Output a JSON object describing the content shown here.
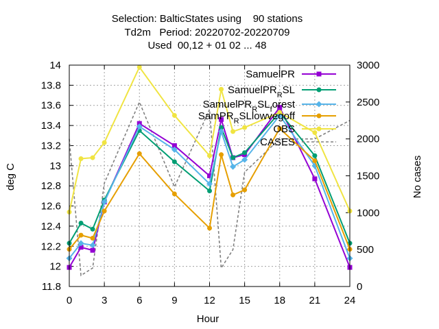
{
  "chart_data": {
    "type": "line",
    "title_lines": [
      "Selection: BalticStates using    90 stations",
      "Td2m   Period: 20220702-20220709",
      "Used  00,12 + 01 02 ... 48"
    ],
    "xlabel": "Hour",
    "ylabel": "deg C",
    "y2label": "No cases",
    "xlim": [
      0,
      24
    ],
    "ylim": [
      11.8,
      14
    ],
    "y2lim": [
      0,
      3000
    ],
    "x_ticks": [
      0,
      3,
      6,
      9,
      12,
      15,
      18,
      21,
      24
    ],
    "y_ticks": [
      "11.8",
      "12",
      "12.2",
      "12.4",
      "12.6",
      "12.8",
      "13",
      "13.2",
      "13.4",
      "13.6",
      "13.8",
      "14"
    ],
    "y2_ticks": [
      "0",
      "500",
      "1000",
      "1500",
      "2000",
      "2500",
      "3000"
    ],
    "grid": true,
    "legend_position": "top-right",
    "series": [
      {
        "name": "SamuelPR",
        "color": "#9400d3",
        "marker": "square",
        "x": [
          0,
          1,
          2,
          3,
          6,
          9,
          12,
          13,
          14,
          15,
          18,
          21,
          24
        ],
        "values": [
          11.99,
          12.19,
          12.16,
          12.64,
          13.42,
          13.2,
          12.9,
          13.46,
          13.08,
          13.11,
          13.58,
          12.87,
          11.99
        ]
      },
      {
        "name_parts": [
          [
            "SamuelPR",
            false
          ],
          [
            "R",
            true
          ],
          [
            "SL",
            false
          ]
        ],
        "color": "#009e73",
        "marker": "circle",
        "x": [
          0,
          1,
          2,
          3,
          6,
          9,
          12,
          13,
          14,
          15,
          18,
          21,
          24
        ],
        "values": [
          12.23,
          12.43,
          12.37,
          12.66,
          13.35,
          13.04,
          12.75,
          13.38,
          13.08,
          13.13,
          13.53,
          13.1,
          12.23
        ]
      },
      {
        "name_parts": [
          [
            "SamuelPR",
            false
          ],
          [
            "R",
            true
          ],
          [
            "SL",
            false
          ],
          [
            "f",
            true
          ],
          [
            "orest",
            false
          ]
        ],
        "color": "#56b4e9",
        "marker": "diamond",
        "x": [
          0,
          1,
          2,
          3,
          6,
          9,
          12,
          13,
          14,
          15,
          18,
          21,
          24
        ],
        "values": [
          12.08,
          12.23,
          12.21,
          12.64,
          13.39,
          13.16,
          12.82,
          13.34,
          12.99,
          13.06,
          13.5,
          13.0,
          12.08
        ]
      },
      {
        "name_parts": [
          [
            "SamPR",
            false
          ],
          [
            "R",
            true
          ],
          [
            "SLlowvegoff",
            false
          ]
        ],
        "color": "#e69f00",
        "marker": "circle",
        "x": [
          0,
          1,
          2,
          3,
          6,
          9,
          12,
          13,
          14,
          15,
          18,
          21,
          24
        ],
        "values": [
          12.17,
          12.31,
          12.28,
          12.55,
          13.12,
          12.72,
          12.38,
          13.11,
          12.71,
          12.76,
          13.37,
          13.05,
          12.17
        ]
      },
      {
        "name": "OBS",
        "color": "#f0e442",
        "marker": "circle",
        "x": [
          0,
          1,
          2,
          3,
          6,
          9,
          12,
          13,
          14,
          15,
          18,
          21,
          24
        ],
        "values": [
          12.54,
          13.07,
          13.08,
          13.23,
          13.98,
          13.5,
          13.1,
          13.76,
          13.34,
          13.38,
          13.53,
          13.33,
          12.55
        ]
      }
    ],
    "cases": {
      "name": "CASES",
      "color": "#808080",
      "x": [
        0,
        1,
        2,
        3,
        6,
        9,
        12,
        13,
        14,
        15,
        18,
        21,
        24
      ],
      "values": [
        2000,
        150,
        250,
        1400,
        2500,
        1350,
        2400,
        250,
        500,
        1550,
        2000,
        2000,
        2250
      ]
    }
  }
}
